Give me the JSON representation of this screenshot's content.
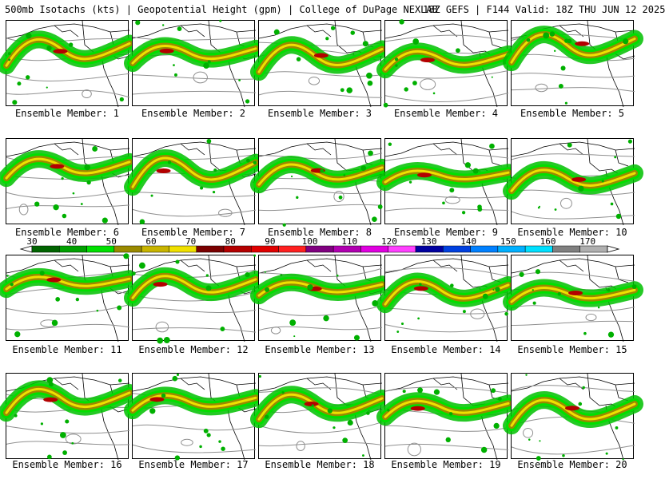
{
  "header": {
    "left": "500mb Isotachs (kts) | Geopotential Height (gpm) | College of DuPage NEXLAB",
    "right": "18Z GEFS | F144 Valid: 18Z THU JUN 12 2025"
  },
  "members": [
    "Ensemble Member: 1",
    "Ensemble Member: 2",
    "Ensemble Member: 3",
    "Ensemble Member: 4",
    "Ensemble Member: 5",
    "Ensemble Member: 6",
    "Ensemble Member: 7",
    "Ensemble Member: 8",
    "Ensemble Member: 9",
    "Ensemble Member: 10",
    "Ensemble Member: 11",
    "Ensemble Member: 12",
    "Ensemble Member: 13",
    "Ensemble Member: 14",
    "Ensemble Member: 15",
    "Ensemble Member: 16",
    "Ensemble Member: 17",
    "Ensemble Member: 18",
    "Ensemble Member: 19",
    "Ensemble Member: 20"
  ],
  "colorbar": {
    "ticks": [
      "30",
      "40",
      "50",
      "60",
      "70",
      "80",
      "90",
      "100",
      "110",
      "120",
      "130",
      "140",
      "150",
      "160",
      "170"
    ],
    "colors": [
      "#006400",
      "#00a000",
      "#00e000",
      "#9a8a00",
      "#c8b400",
      "#f0e000",
      "#7a0000",
      "#b40000",
      "#e00000",
      "#ff2020",
      "#800080",
      "#b000b0",
      "#e000e0",
      "#ff40ff",
      "#0000a0",
      "#0040e0",
      "#0080ff",
      "#00b0ff",
      "#00e0ff",
      "#808080",
      "#b0b0b0"
    ]
  },
  "map_style": {
    "background": "#ffffff",
    "land": "#ffffff",
    "contour": "#909090",
    "borders": "#000000",
    "jet_outer": "#00c000",
    "jet_mid": "#9a8a00",
    "jet_core": "#f0e000",
    "jet_max": "#b40000"
  }
}
